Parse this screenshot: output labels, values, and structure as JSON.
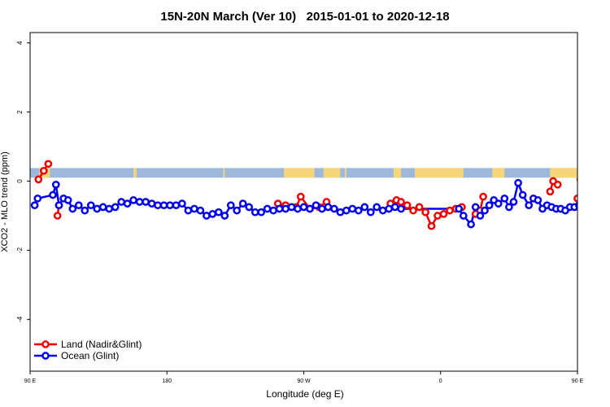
{
  "chart_data": {
    "type": "line",
    "title": "15N-20N March (Ver 10)   2015-01-01 to 2020-12-18",
    "xlabel": "Longitude (deg E)",
    "ylabel": "XCO2 - MLO trend (ppm)",
    "xlim": [
      90,
      450
    ],
    "ylim": [
      -5.5,
      4.3
    ],
    "x_ticks": [
      {
        "value": 90,
        "label": "90 E"
      },
      {
        "value": 180,
        "label": "180"
      },
      {
        "value": 270,
        "label": "90 W"
      },
      {
        "value": 360,
        "label": "0"
      },
      {
        "value": 450,
        "label": "90 E"
      },
      {
        "value": 540,
        "label": "180"
      }
    ],
    "y_ticks": [
      {
        "value": 4,
        "label": "4"
      },
      {
        "value": 2,
        "label": "2"
      },
      {
        "value": 0,
        "label": "0"
      },
      {
        "value": -2,
        "label": "-2"
      },
      {
        "value": -4,
        "label": "-4"
      }
    ],
    "legend_position": "bottom-left",
    "grid": false,
    "map_strip": {
      "y_range": [
        0.1,
        0.38
      ],
      "ocean_color": "#9eb8dc",
      "land_color": "#f5d77a",
      "land_lon_ranges": [
        [
          96,
          103
        ],
        [
          158,
          160
        ],
        [
          217,
          218
        ],
        [
          257,
          277
        ],
        [
          283,
          294
        ],
        [
          297,
          298
        ],
        [
          329,
          334
        ],
        [
          343,
          375
        ],
        [
          394,
          402
        ],
        [
          432,
          454
        ],
        [
          470,
          472
        ],
        [
          517,
          518
        ]
      ]
    },
    "series": [
      {
        "name": "Land (Nadir&Glint)",
        "color": "#ee0000",
        "segments": [
          [
            [
              95.5,
              0.05
            ],
            [
              99,
              0.3
            ],
            [
              102,
              0.5
            ]
          ],
          [
            [
              108,
              -1.0
            ],
            [
              109,
              -0.7
            ]
          ],
          [
            [
              253,
              -0.65
            ],
            [
              258,
              -0.7
            ],
            [
              265,
              -0.75
            ],
            [
              268,
              -0.45
            ],
            [
              274,
              -0.8
            ],
            [
              280,
              -0.75
            ],
            [
              285,
              -0.6
            ]
          ],
          [
            [
              327,
              -0.65
            ],
            [
              331,
              -0.55
            ],
            [
              334,
              -0.6
            ],
            [
              338,
              -0.7
            ],
            [
              342,
              -0.85
            ],
            [
              346,
              -0.75
            ],
            [
              350,
              -0.9
            ],
            [
              354,
              -1.3
            ],
            [
              358,
              -1.0
            ],
            [
              362,
              -0.95
            ],
            [
              366,
              -0.85
            ],
            [
              370,
              -0.8
            ],
            [
              374,
              -0.75
            ]
          ],
          [
            [
              383,
              -0.95
            ],
            [
              386,
              -0.85
            ],
            [
              388,
              -0.45
            ]
          ],
          [
            [
              432,
              -0.3
            ],
            [
              434,
              0.0
            ],
            [
              437,
              -0.1
            ]
          ],
          [
            [
              450,
              -0.5
            ],
            [
              452,
              0.05
            ],
            [
              456,
              0.25
            ],
            [
              459,
              0.5
            ]
          ],
          [
            [
              475,
              -1.0
            ],
            [
              477,
              -0.7
            ]
          ]
        ]
      },
      {
        "name": "Ocean (Glint)",
        "color": "#0000ee",
        "points": [
          [
            93,
            -0.7
          ],
          [
            95,
            -0.5
          ],
          [
            105,
            -0.4
          ],
          [
            107,
            -0.1
          ],
          [
            109,
            -0.7
          ],
          [
            112,
            -0.5
          ],
          [
            115,
            -0.55
          ],
          [
            118,
            -0.8
          ],
          [
            122,
            -0.7
          ],
          [
            126,
            -0.85
          ],
          [
            130,
            -0.7
          ],
          [
            134,
            -0.8
          ],
          [
            138,
            -0.75
          ],
          [
            142,
            -0.8
          ],
          [
            146,
            -0.75
          ],
          [
            150,
            -0.6
          ],
          [
            154,
            -0.65
          ],
          [
            158,
            -0.55
          ],
          [
            162,
            -0.6
          ],
          [
            166,
            -0.6
          ],
          [
            170,
            -0.65
          ],
          [
            174,
            -0.7
          ],
          [
            178,
            -0.7
          ],
          [
            182,
            -0.7
          ],
          [
            186,
            -0.7
          ],
          [
            190,
            -0.65
          ],
          [
            194,
            -0.85
          ],
          [
            198,
            -0.8
          ],
          [
            202,
            -0.85
          ],
          [
            206,
            -1.0
          ],
          [
            210,
            -0.95
          ],
          [
            214,
            -0.9
          ],
          [
            218,
            -1.0
          ],
          [
            222,
            -0.7
          ],
          [
            226,
            -0.85
          ],
          [
            230,
            -0.65
          ],
          [
            234,
            -0.75
          ],
          [
            238,
            -0.9
          ],
          [
            242,
            -0.9
          ],
          [
            246,
            -0.8
          ],
          [
            250,
            -0.85
          ],
          [
            254,
            -0.8
          ],
          [
            258,
            -0.8
          ],
          [
            262,
            -0.75
          ],
          [
            266,
            -0.8
          ],
          [
            270,
            -0.75
          ],
          [
            274,
            -0.8
          ],
          [
            278,
            -0.7
          ],
          [
            282,
            -0.8
          ],
          [
            286,
            -0.75
          ],
          [
            290,
            -0.8
          ],
          [
            294,
            -0.9
          ],
          [
            298,
            -0.85
          ],
          [
            302,
            -0.8
          ],
          [
            306,
            -0.85
          ],
          [
            310,
            -0.75
          ],
          [
            314,
            -0.9
          ],
          [
            318,
            -0.75
          ],
          [
            322,
            -0.85
          ],
          [
            326,
            -0.8
          ],
          [
            330,
            -0.75
          ],
          [
            334,
            -0.8
          ],
          [
            372,
            -0.8
          ],
          [
            375,
            -1.0
          ],
          [
            380,
            -1.25
          ],
          [
            383,
            -0.75
          ],
          [
            386,
            -1.0
          ],
          [
            389,
            -0.85
          ],
          [
            392,
            -0.7
          ],
          [
            395,
            -0.55
          ],
          [
            398,
            -0.65
          ],
          [
            402,
            -0.5
          ],
          [
            405,
            -0.75
          ],
          [
            408,
            -0.6
          ],
          [
            411,
            -0.05
          ],
          [
            414,
            -0.4
          ],
          [
            418,
            -0.7
          ],
          [
            421,
            -0.5
          ],
          [
            424,
            -0.55
          ],
          [
            427,
            -0.8
          ],
          [
            430,
            -0.7
          ],
          [
            433,
            -0.75
          ],
          [
            436,
            -0.8
          ],
          [
            439,
            -0.8
          ],
          [
            442,
            -0.85
          ],
          [
            445,
            -0.75
          ],
          [
            448,
            -0.75
          ],
          [
            451,
            -0.7
          ],
          [
            454,
            -0.7
          ],
          [
            457,
            -0.65
          ],
          [
            460,
            -0.55
          ],
          [
            463,
            -0.6
          ],
          [
            466,
            -0.65
          ]
        ]
      }
    ]
  }
}
